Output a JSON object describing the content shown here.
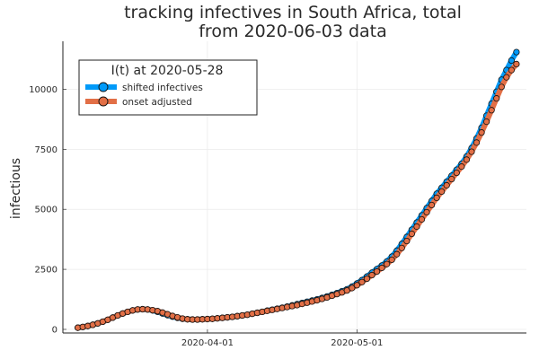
{
  "chart_data": {
    "type": "scatter",
    "title_line1": "tracking infectives in South Africa, total",
    "title_line2": "from 2020-06-03 data",
    "xlabel": "",
    "ylabel": "infectious",
    "x_start_date": "2020-03-06",
    "x_end_date": "2020-06-02",
    "xlim": [
      "2020-03-03",
      "2020-06-04"
    ],
    "ylim": [
      -150,
      12000
    ],
    "xticks": [
      {
        "date": "2020-04-01",
        "label": "2020-04-01"
      },
      {
        "date": "2020-05-01",
        "label": "2020-05-01"
      }
    ],
    "yticks": [
      {
        "value": 0,
        "label": "0"
      },
      {
        "value": 2500,
        "label": "2500"
      },
      {
        "value": 5000,
        "label": "5000"
      },
      {
        "value": 7500,
        "label": "7500"
      },
      {
        "value": 10000,
        "label": "10000"
      }
    ],
    "grid": true,
    "legend": {
      "title": "I(t) at 2020-05-28",
      "placement": "top-left",
      "entries": [
        "shifted infectives",
        "onset adjusted"
      ]
    },
    "series": [
      {
        "name": "shifted infectives",
        "color": "#009af9",
        "values": [
          70,
          100,
          140,
          190,
          250,
          320,
          400,
          490,
          580,
          660,
          730,
          790,
          830,
          840,
          830,
          790,
          730,
          660,
          590,
          530,
          480,
          440,
          420,
          410,
          410,
          420,
          430,
          440,
          460,
          480,
          500,
          520,
          550,
          580,
          610,
          650,
          690,
          730,
          780,
          820,
          860,
          900,
          950,
          1000,
          1050,
          1100,
          1150,
          1200,
          1250,
          1310,
          1370,
          1440,
          1510,
          1590,
          1670,
          1780,
          1910,
          2050,
          2200,
          2360,
          2510,
          2660,
          2830,
          3030,
          3280,
          3560,
          3850,
          4150,
          4450,
          4750,
          5050,
          5350,
          5650,
          5900,
          6150,
          6400,
          6650,
          6900,
          7200,
          7550,
          7950,
          8400,
          8900,
          9400,
          9900,
          10400,
          10800,
          11200,
          11550
        ]
      },
      {
        "name": "onset adjusted",
        "color": "#e26f46",
        "values": [
          70,
          100,
          140,
          190,
          250,
          320,
          400,
          490,
          580,
          660,
          730,
          790,
          830,
          840,
          830,
          800,
          760,
          700,
          630,
          560,
          500,
          450,
          420,
          410,
          410,
          420,
          430,
          440,
          460,
          480,
          500,
          520,
          550,
          580,
          610,
          650,
          690,
          730,
          770,
          810,
          850,
          890,
          930,
          970,
          1010,
          1060,
          1110,
          1160,
          1210,
          1270,
          1330,
          1400,
          1470,
          1540,
          1620,
          1720,
          1840,
          1970,
          2110,
          2260,
          2410,
          2560,
          2720,
          2900,
          3130,
          3390,
          3680,
          3980,
          4280,
          4580,
          4880,
          5180,
          5480,
          5740,
          6000,
          6260,
          6520,
          6780,
          7070,
          7400,
          7780,
          8200,
          8650,
          9130,
          9620,
          10100,
          10500,
          10800,
          11050
        ]
      }
    ]
  }
}
